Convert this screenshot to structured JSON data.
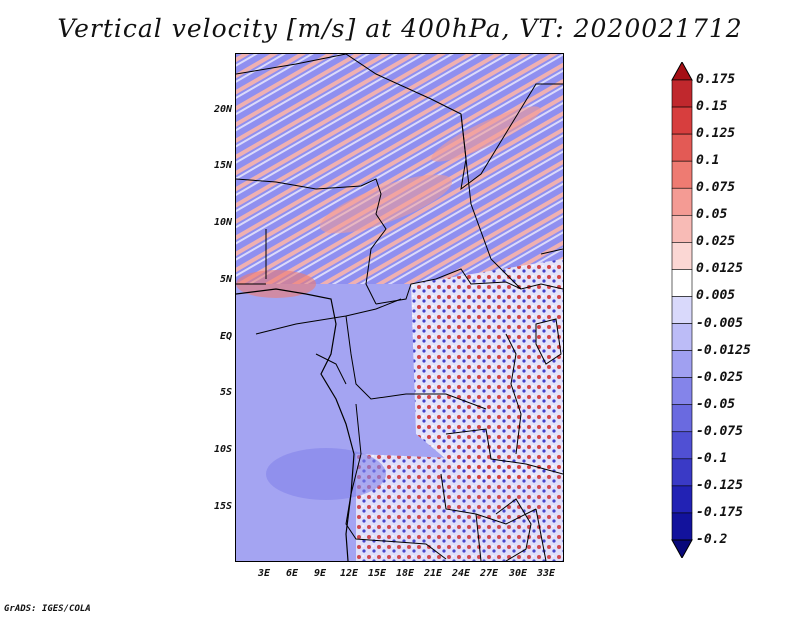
{
  "title": "Vertical velocity [m/s] at 400hPa, VT: 2020021712",
  "credit": "GrADS: IGES/COLA",
  "map": {
    "lat_labels": [
      "20N",
      "15N",
      "10N",
      "5N",
      "EQ",
      "5S",
      "10S",
      "15S"
    ],
    "lon_labels": [
      "3E",
      "6E",
      "9E",
      "12E",
      "15E",
      "18E",
      "21E",
      "24E",
      "27E",
      "30E",
      "33E"
    ]
  },
  "colorbar": {
    "labels": [
      "0.175",
      "0.15",
      "0.125",
      "0.1",
      "0.075",
      "0.05",
      "0.025",
      "0.0125",
      "0.005",
      "-0.005",
      "-0.0125",
      "-0.025",
      "-0.05",
      "-0.075",
      "-0.1",
      "-0.125",
      "-0.175",
      "-0.2"
    ],
    "colors": [
      "#a50f15",
      "#c0282d",
      "#d73e3e",
      "#e35a55",
      "#ee7b72",
      "#f49b94",
      "#f8bbb6",
      "#fbd7d4",
      "#ffffff",
      "#d9d9fb",
      "#bcbcf7",
      "#a0a0f1",
      "#8484ea",
      "#6a6ae0",
      "#5050d4",
      "#3a3ac6",
      "#2222b4",
      "#12129c",
      "#08087a"
    ]
  }
}
